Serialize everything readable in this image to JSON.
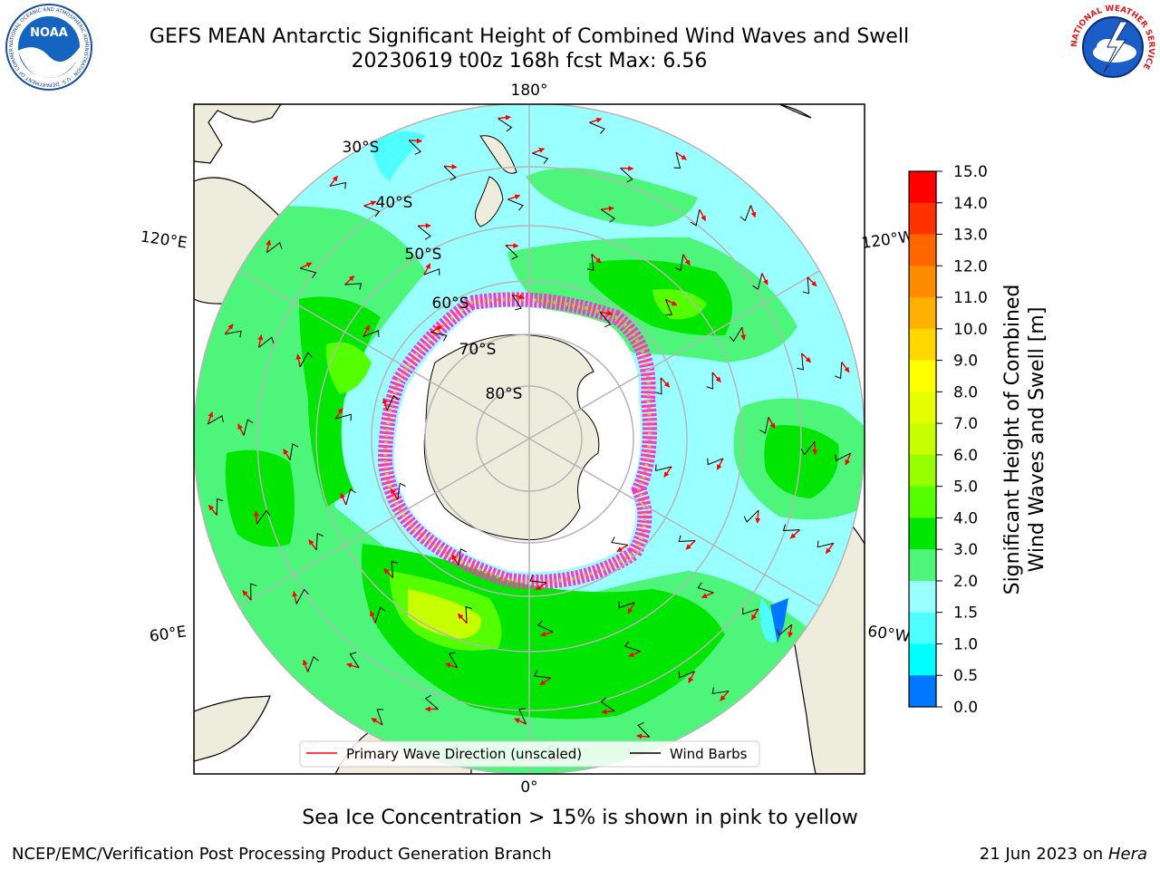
{
  "title_line1": "GEFS MEAN Antarctic Significant Height of Combined Wind Waves and Swell",
  "title_line2": "20230619 t00z 168h fcst   Max: 6.56",
  "logos": {
    "noaa_text": "NOAA",
    "noaa_ring": "NATIONAL OCEANIC AND ATMOSPHERIC ADMINISTRATION · U.S. DEPARTMENT OF COMMERCE",
    "nws_ring": "NATIONAL WEATHER SERVICE"
  },
  "map": {
    "projection": "south-polar-stereographic",
    "lon_labels": {
      "top": "180°",
      "bottom": "0°",
      "upper_left": "120°E",
      "upper_right": "120°W",
      "lower_left": "60°E",
      "lower_right": "60°W"
    },
    "lat_labels": [
      "30°S",
      "40°S",
      "50°S",
      "60°S",
      "70°S",
      "80°S"
    ],
    "legend": [
      {
        "label": "Primary Wave Direction (unscaled)",
        "color": "#ff0000"
      },
      {
        "label": "Wind Barbs",
        "color": "#000000"
      }
    ],
    "colors": {
      "land": "#eeecdc",
      "ice_edge": "#ff33cc",
      "arrow": "#ff0000",
      "barb": "#000000",
      "grid": "#b5b5b5"
    }
  },
  "colorbar": {
    "label_line1": "Significant Height of Combined",
    "label_line2": "Wind Waves and Swell [m]",
    "ticks": [
      "15.0",
      "14.0",
      "13.0",
      "12.0",
      "11.0",
      "10.0",
      "9.0",
      "8.0",
      "7.0",
      "6.0",
      "5.0",
      "4.0",
      "3.0",
      "2.0",
      "1.5",
      "1.0",
      "0.5",
      "0.0"
    ],
    "colors": [
      "#ff0000",
      "#ff3300",
      "#ff6600",
      "#ff8c00",
      "#ffb000",
      "#ffd700",
      "#ffff00",
      "#e6ff00",
      "#c8ff00",
      "#96ff00",
      "#55ff00",
      "#00e600",
      "#4df57a",
      "#99ffff",
      "#4dffff",
      "#00ffff",
      "#0077ff",
      "#0000ff"
    ]
  },
  "caption": "Sea Ice Concentration > 15% is shown in pink to yellow",
  "footer": {
    "left": "NCEP/EMC/Verification Post Processing Product Generation Branch",
    "right_date": "21 Jun 2023 on",
    "right_host": "Hera"
  }
}
